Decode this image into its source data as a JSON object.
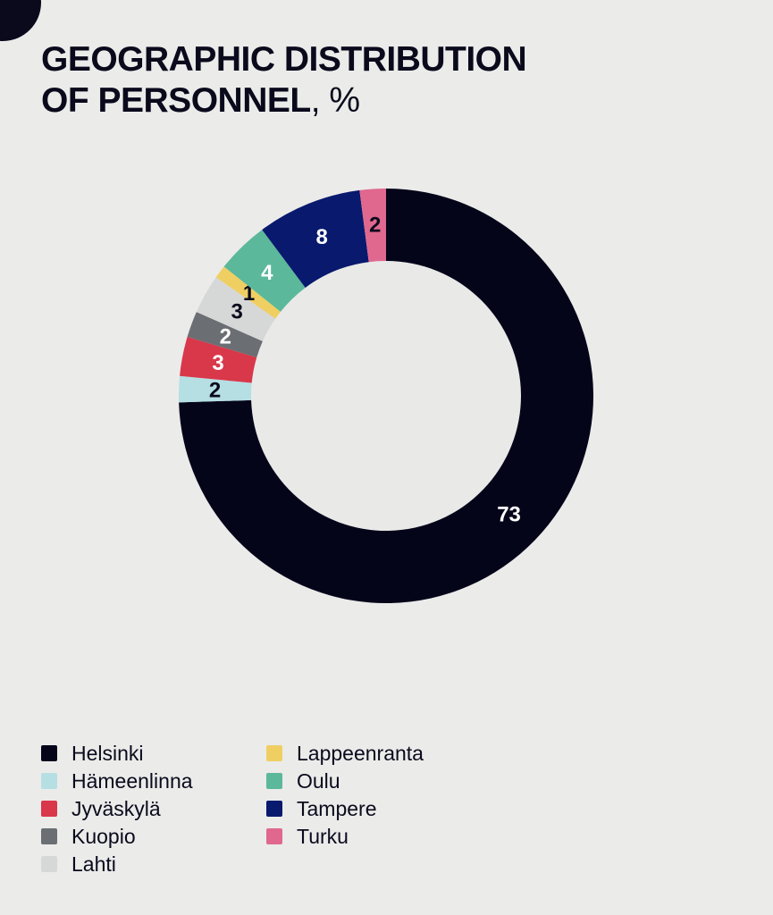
{
  "title": {
    "line1": "GEOGRAPHIC DISTRIBUTION",
    "line2": "OF PERSONNEL",
    "unit": ", %"
  },
  "chart_data": {
    "type": "pie",
    "variant": "donut",
    "title": "GEOGRAPHIC DISTRIBUTION OF PERSONNEL, %",
    "slices": [
      {
        "name": "Helsinki",
        "value": 73,
        "color": "#05051a",
        "label_color": "#ffffff"
      },
      {
        "name": "Hämeenlinna",
        "value": 2,
        "color": "#b5dfe3",
        "label_color": "#0a0a1c"
      },
      {
        "name": "Jyväskylä",
        "value": 3,
        "color": "#d9374a",
        "label_color": "#ffffff"
      },
      {
        "name": "Kuopio",
        "value": 2,
        "color": "#6b6e72",
        "label_color": "#ffffff"
      },
      {
        "name": "Lahti",
        "value": 3,
        "color": "#d6d8d7",
        "label_color": "#0a0a1c"
      },
      {
        "name": "Lappeenranta",
        "value": 1,
        "color": "#efcf62",
        "label_color": "#0a0a1c"
      },
      {
        "name": "Oulu",
        "value": 4,
        "color": "#5cb89a",
        "label_color": "#ffffff"
      },
      {
        "name": "Tampere",
        "value": 8,
        "color": "#08196e",
        "label_color": "#ffffff"
      },
      {
        "name": "Turku",
        "value": 2,
        "color": "#e0688e",
        "label_color": "#0a0a1c"
      }
    ],
    "legend_position": "bottom-left",
    "legend_columns": 2
  }
}
